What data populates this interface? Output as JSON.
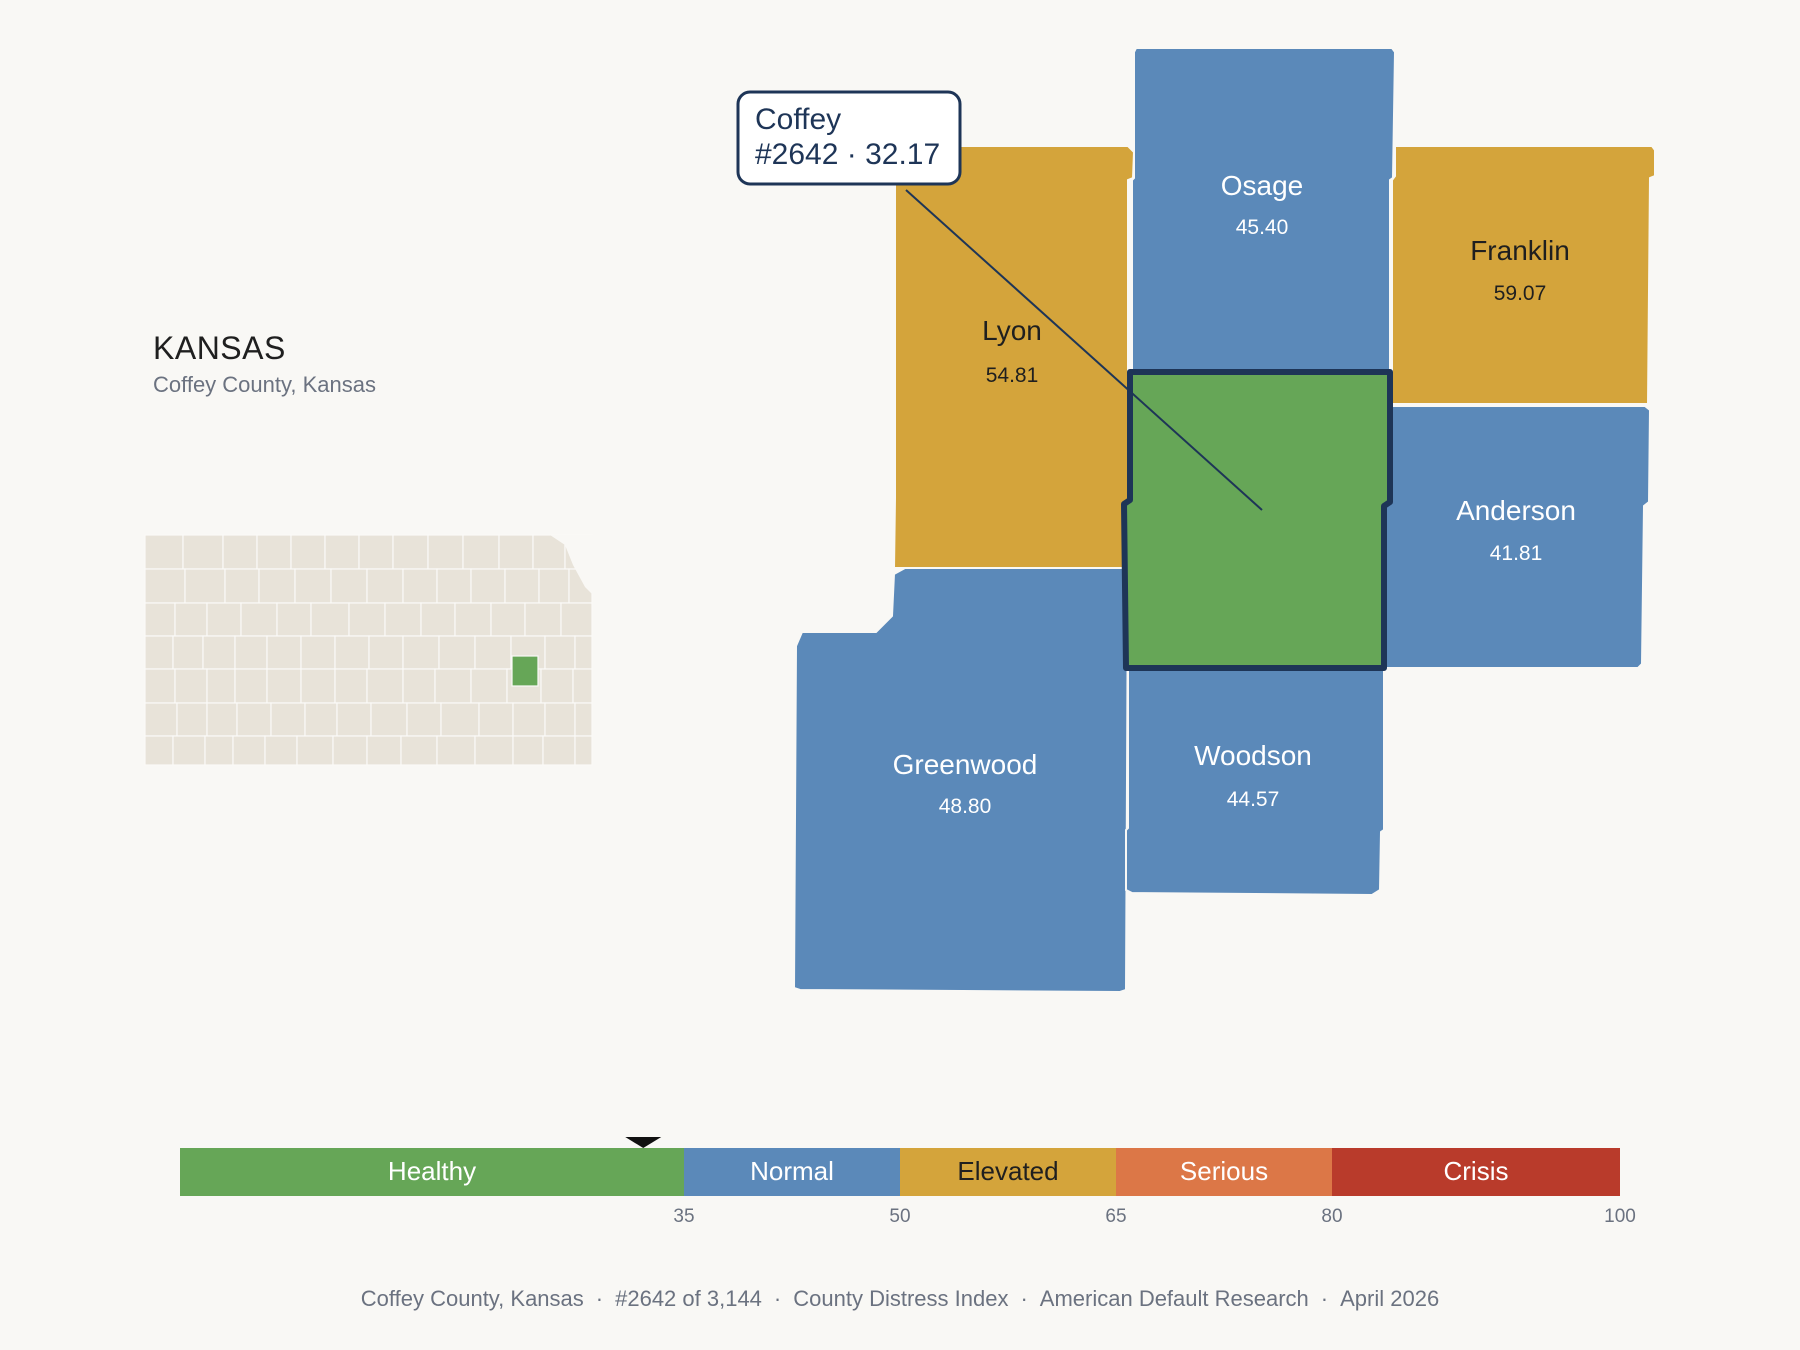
{
  "state": {
    "title": "KANSAS",
    "subtitle": "Coffey County, Kansas"
  },
  "focus": {
    "name": "Coffey",
    "rank_label": "#2642 · 32.17",
    "score": 32.17,
    "color": "#66a657"
  },
  "counties": [
    {
      "key": "lyon",
      "name": "Lyon",
      "score": "54.81",
      "fill": "#d4a43b",
      "text": "#1f1f1f"
    },
    {
      "key": "osage",
      "name": "Osage",
      "score": "45.40",
      "fill": "#5b89b9",
      "text": "#ffffff"
    },
    {
      "key": "franklin",
      "name": "Franklin",
      "score": "59.07",
      "fill": "#d4a43b",
      "text": "#1f1f1f"
    },
    {
      "key": "anderson",
      "name": "Anderson",
      "score": "41.81",
      "fill": "#5b89b9",
      "text": "#ffffff"
    },
    {
      "key": "greenwood",
      "name": "Greenwood",
      "score": "48.80",
      "fill": "#5b89b9",
      "text": "#ffffff"
    },
    {
      "key": "woodson",
      "name": "Woodson",
      "score": "44.57",
      "fill": "#5b89b9",
      "text": "#ffffff"
    }
  ],
  "scale": {
    "min": 0,
    "max": 100,
    "marker_value": 32.17,
    "bands": [
      {
        "label": "Healthy",
        "from": 0,
        "to": 35,
        "color": "#66a657",
        "text": "#ffffff"
      },
      {
        "label": "Normal",
        "from": 35,
        "to": 50,
        "color": "#5b89b9",
        "text": "#ffffff"
      },
      {
        "label": "Elevated",
        "from": 50,
        "to": 65,
        "color": "#d4a43b",
        "text": "#1f1f1f"
      },
      {
        "label": "Serious",
        "from": 65,
        "to": 80,
        "color": "#dc7747",
        "text": "#ffffff"
      },
      {
        "label": "Crisis",
        "from": 80,
        "to": 100,
        "color": "#b93b2b",
        "text": "#ffffff"
      }
    ],
    "ticks": [
      "35",
      "50",
      "65",
      "80",
      "100"
    ]
  },
  "footer": {
    "county": "Coffey County, Kansas",
    "rank": "#2642 of 3,144",
    "index": "County Distress Index",
    "org": "American Default Research",
    "date": "April 2026"
  },
  "colors": {
    "background": "#f9f8f5",
    "county_outline": "#1e3557",
    "inset_fill": "#e8e3d9",
    "inset_highlight": "#66a657"
  }
}
